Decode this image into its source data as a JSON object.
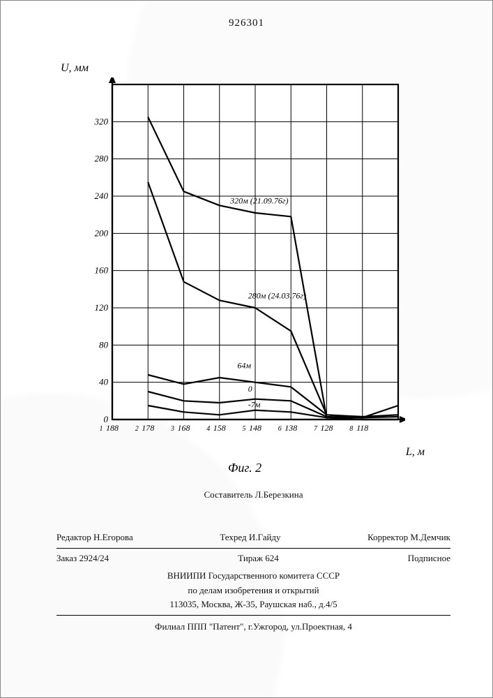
{
  "doc_number": "926301",
  "chart": {
    "type": "line",
    "y_axis_label": "U, мм",
    "x_axis_label": "L, м",
    "fig_label": "Фиг. 2",
    "bg_color": "#ffffff",
    "grid_color": "#000000",
    "axis_color": "#000000",
    "axis_width": 2.2,
    "grid_width": 1.0,
    "line_width": 2.2,
    "line_color": "#000000",
    "font_family": "Times New Roman",
    "label_fontsize_pt": 12,
    "tick_fontsize_pt": 11,
    "ymin": 0,
    "ymax": 360,
    "ytick_step": 40,
    "xmin": 108,
    "xmax": 188,
    "xticks": [
      188,
      178,
      168,
      158,
      148,
      138,
      128,
      118
    ],
    "secondary_x_marks": [
      1,
      2,
      3,
      4,
      5,
      6,
      7,
      8
    ],
    "series": [
      {
        "name": "320м",
        "note": "(21.09.76г)",
        "x": [
          178,
          168,
          158,
          148,
          138,
          128,
          118,
          108
        ],
        "y": [
          325,
          245,
          230,
          222,
          218,
          2,
          0,
          0
        ]
      },
      {
        "name": "280м",
        "note": "(24.03.76г)",
        "x": [
          178,
          168,
          158,
          148,
          138,
          128,
          118,
          108
        ],
        "y": [
          255,
          148,
          128,
          120,
          95,
          5,
          2,
          15
        ]
      },
      {
        "name": "64м",
        "note": "",
        "x": [
          178,
          168,
          158,
          148,
          138,
          128,
          118,
          108
        ],
        "y": [
          48,
          38,
          45,
          40,
          35,
          5,
          3,
          5
        ]
      },
      {
        "name": "0",
        "note": "",
        "x": [
          178,
          168,
          158,
          148,
          138,
          128,
          118,
          108
        ],
        "y": [
          30,
          20,
          18,
          22,
          20,
          3,
          2,
          3
        ]
      },
      {
        "name": "-7м",
        "note": "",
        "x": [
          178,
          168,
          158,
          148,
          138,
          128,
          118,
          108
        ],
        "y": [
          15,
          8,
          5,
          10,
          8,
          2,
          0,
          0
        ]
      }
    ],
    "series_label_positions": [
      {
        "x": 155,
        "y": 232
      },
      {
        "x": 150,
        "y": 130
      },
      {
        "x": 153,
        "y": 55
      },
      {
        "x": 150,
        "y": 30
      },
      {
        "x": 150,
        "y": 13
      }
    ]
  },
  "footer": {
    "compiler_label": "Составитель",
    "compiler": "Л.Березкина",
    "editor_label": "Редактор",
    "editor": "Н.Егорова",
    "techred_label": "Техред",
    "techred": "И.Гайду",
    "corrector_label": "Корректор",
    "corrector": "М.Демчик",
    "order_label": "Заказ",
    "order": "2924/24",
    "tirage_label": "Тираж",
    "tirage": "624",
    "subscription": "Подписное",
    "org_line1": "ВНИИПИ Государственного комитета СССР",
    "org_line2": "по делам изобретения и открытий",
    "org_line3": "113035, Москва, Ж-35, Раушская наб., д.4/5",
    "branch": "Филиал ППП \"Патент\", г.Ужгород, ул.Проектная, 4"
  }
}
